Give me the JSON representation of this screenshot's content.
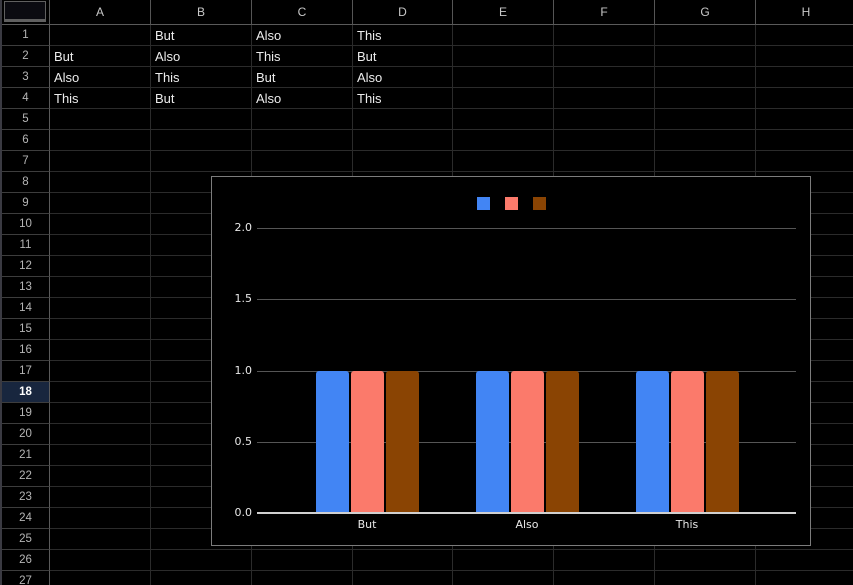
{
  "spreadsheet": {
    "columns": [
      "A",
      "B",
      "C",
      "D",
      "E",
      "F",
      "G",
      "H"
    ],
    "row_count": 27,
    "selected_row": 18,
    "cell_rows": [
      {
        "row": 1,
        "cells": [
          "",
          "But",
          "Also",
          "This",
          "",
          "",
          "",
          ""
        ]
      },
      {
        "row": 2,
        "cells": [
          "But",
          "Also",
          "This",
          "But",
          "",
          "",
          "",
          ""
        ]
      },
      {
        "row": 3,
        "cells": [
          "Also",
          "This",
          "But",
          "Also",
          "",
          "",
          "",
          ""
        ]
      },
      {
        "row": 4,
        "cells": [
          "This",
          "But",
          "Also",
          "This",
          "",
          "",
          "",
          ""
        ]
      }
    ]
  },
  "chart_data": {
    "type": "bar",
    "categories": [
      "But",
      "Also",
      "This"
    ],
    "series": [
      {
        "name": "",
        "color": "#4285f4",
        "values": [
          1.0,
          1.0,
          1.0
        ]
      },
      {
        "name": "",
        "color": "#fb7a6b",
        "values": [
          1.0,
          1.0,
          1.0
        ]
      },
      {
        "name": "",
        "color": "#8a4403",
        "values": [
          1.0,
          1.0,
          1.0
        ]
      }
    ],
    "title": "",
    "xlabel": "",
    "ylabel": "",
    "ylim": [
      0.0,
      2.0
    ],
    "yticks": [
      0.0,
      0.5,
      1.0,
      1.5,
      2.0
    ],
    "ytick_labels": [
      "0.0",
      "0.5",
      "1.0",
      "1.5",
      "2.0"
    ],
    "grid": true,
    "legend": {
      "position": "top",
      "entries": [
        {
          "label": "",
          "color": "#4285f4"
        },
        {
          "label": "",
          "color": "#fb7a6b"
        },
        {
          "label": "",
          "color": "#8a4403"
        }
      ]
    }
  },
  "colors": {
    "background": "#000000",
    "cell_border": "#2b2b2b",
    "header_border": "#5a5a5a",
    "header_text": "#c8c8c8",
    "cell_text": "#ececec",
    "selected_row_bg": "#18263e",
    "selected_row_text": "#ffffff",
    "chart_border": "#7c7c7c",
    "chart_gridline": "#555555",
    "chart_axis": "#d0d0d0",
    "chart_text": "#e8e8e8"
  }
}
